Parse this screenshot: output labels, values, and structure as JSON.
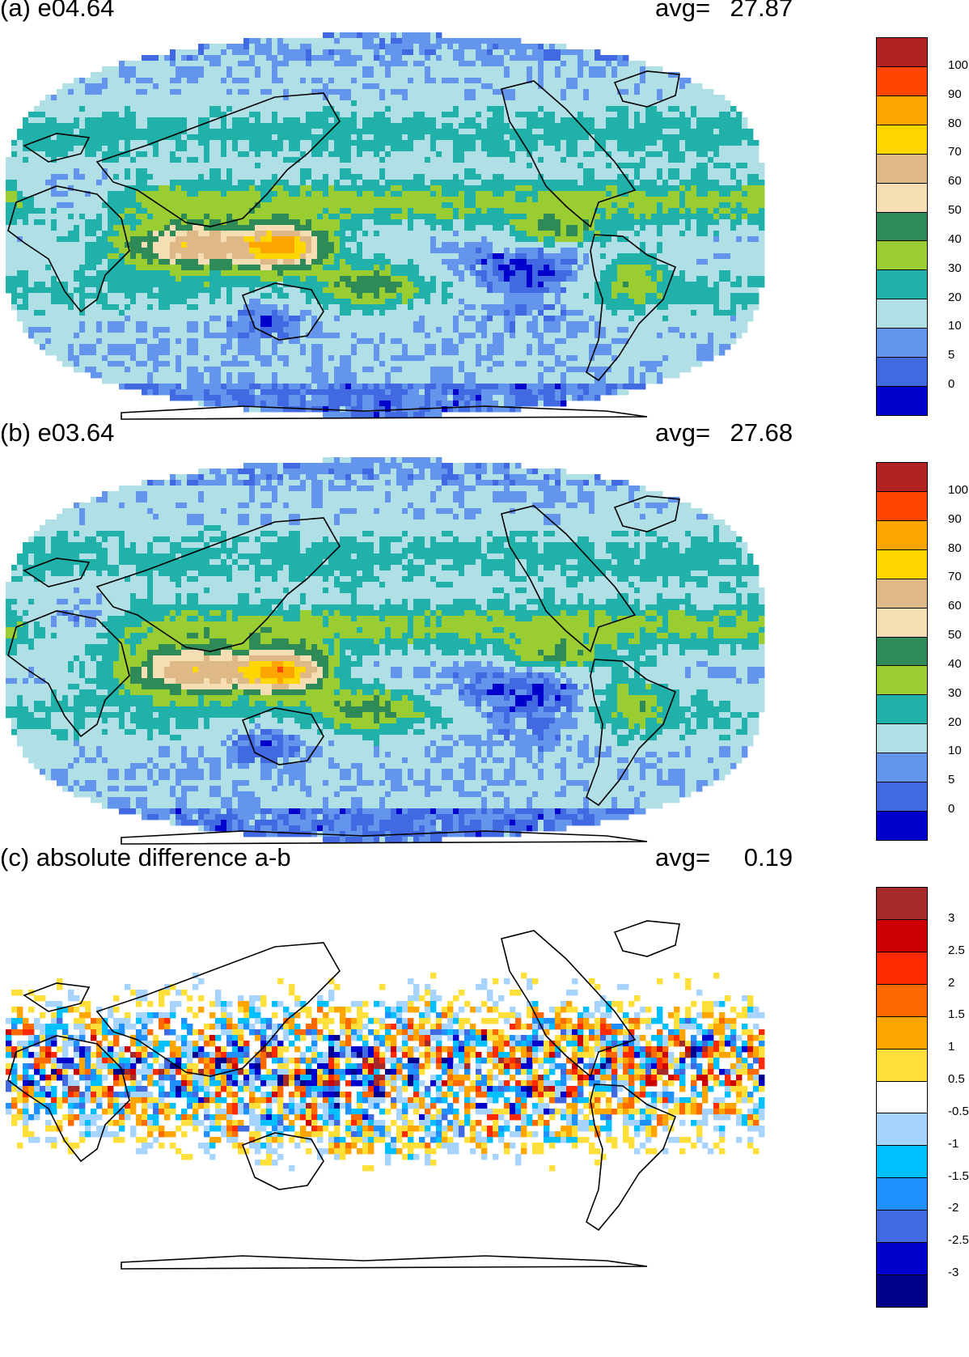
{
  "panels": [
    {
      "id": "a",
      "title": "(a) e04.64",
      "avg_label": "avg=",
      "avg_value": "27.87",
      "colorbar": {
        "colors": [
          "#b22222",
          "#ff4500",
          "#ffa500",
          "#ffd700",
          "#deb887",
          "#f5deb3",
          "#2e8b57",
          "#9acd32",
          "#20b2aa",
          "#b0e0e6",
          "#6495ed",
          "#4169e1",
          "#0000cd"
        ],
        "tick_labels": [
          "100",
          "90",
          "80",
          "70",
          "60",
          "50",
          "40",
          "30",
          "20",
          "10",
          "5",
          "0"
        ]
      }
    },
    {
      "id": "b",
      "title": "(b) e03.64",
      "avg_label": "avg=",
      "avg_value": "27.68",
      "colorbar": {
        "colors": [
          "#b22222",
          "#ff4500",
          "#ffa500",
          "#ffd700",
          "#deb887",
          "#f5deb3",
          "#2e8b57",
          "#9acd32",
          "#20b2aa",
          "#b0e0e6",
          "#6495ed",
          "#4169e1",
          "#0000cd"
        ],
        "tick_labels": [
          "100",
          "90",
          "80",
          "70",
          "60",
          "50",
          "40",
          "30",
          "20",
          "10",
          "5",
          "0"
        ]
      }
    },
    {
      "id": "c",
      "title": "(c) absolute difference a-b",
      "avg_label": "avg=",
      "avg_value": "0.19",
      "colorbar": {
        "colors": [
          "#a52a2a",
          "#cc0000",
          "#ff2a00",
          "#ff6a00",
          "#ffa500",
          "#ffdf3a",
          "#ffffff",
          "#a6d4ff",
          "#00bfff",
          "#1e90ff",
          "#4169e1",
          "#0000cd",
          "#00008b"
        ],
        "tick_labels": [
          "3",
          "2.5",
          "2",
          "1.5",
          "1",
          "0.5",
          "-0.5",
          "-1",
          "-1.5",
          "-2",
          "-2.5",
          "-3"
        ]
      }
    }
  ]
}
